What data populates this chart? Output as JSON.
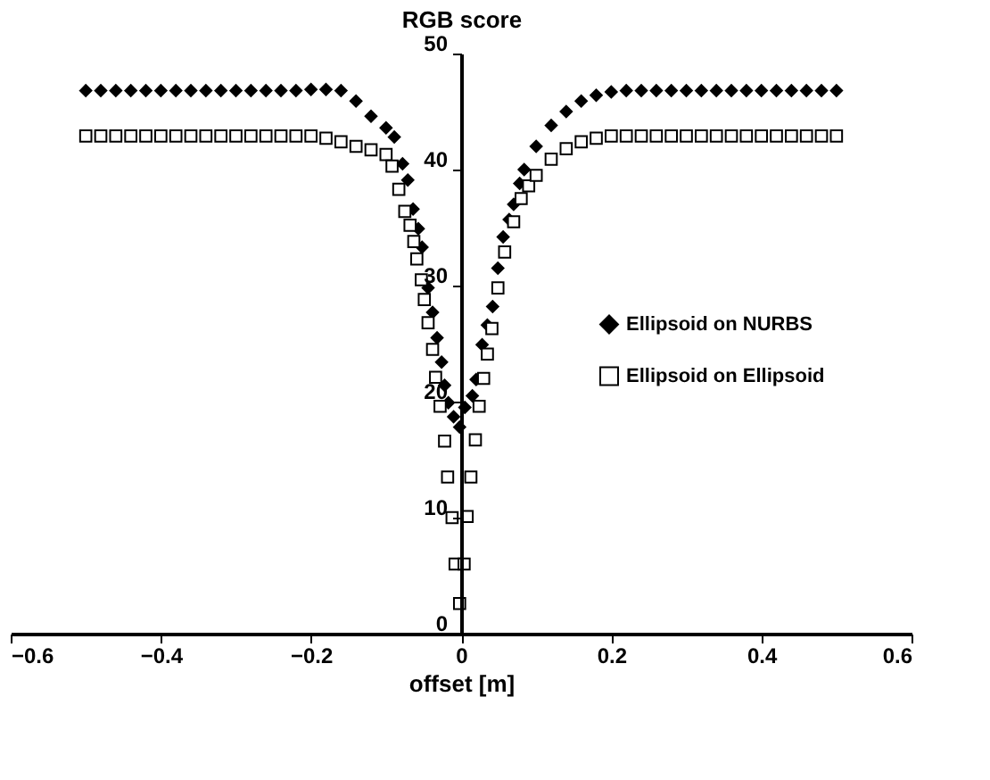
{
  "chart_data": {
    "type": "scatter",
    "xlabel": "offset [m]",
    "ylabel": "RGB score",
    "xlim": [
      -0.6,
      0.6
    ],
    "xticks": [
      -0.6,
      -0.4,
      -0.2,
      0,
      0.2,
      0.4,
      0.6
    ],
    "ylim": [
      0,
      50
    ],
    "yticks": [
      0,
      10,
      20,
      30,
      40,
      50
    ],
    "grid": false,
    "legend": "right",
    "series": [
      {
        "name": "Ellipsoid on NURBS",
        "color": "#000000",
        "marker": "diamond",
        "x": [
          -0.5,
          -0.48,
          -0.46,
          -0.44,
          -0.42,
          -0.4,
          -0.38,
          -0.36,
          -0.34,
          -0.32,
          -0.3,
          -0.28,
          -0.26,
          -0.24,
          -0.22,
          -0.2,
          -0.18,
          -0.16,
          -0.14,
          -0.12,
          -0.1,
          -0.089,
          -0.078,
          -0.071,
          -0.064,
          -0.057,
          -0.052,
          -0.044,
          -0.038,
          -0.032,
          -0.026,
          -0.022,
          -0.017,
          -0.01,
          -0.002,
          0.005,
          0.015,
          0.02,
          0.028,
          0.035,
          0.042,
          0.049,
          0.056,
          0.064,
          0.07,
          0.078,
          0.084,
          0.1,
          0.12,
          0.14,
          0.16,
          0.18,
          0.2,
          0.22,
          0.24,
          0.26,
          0.28,
          0.3,
          0.32,
          0.34,
          0.36,
          0.38,
          0.4,
          0.42,
          0.44,
          0.46,
          0.48,
          0.5
        ],
        "values": [
          46.8,
          46.8,
          46.8,
          46.8,
          46.8,
          46.8,
          46.8,
          46.8,
          46.8,
          46.8,
          46.8,
          46.8,
          46.8,
          46.8,
          46.8,
          46.9,
          46.9,
          46.8,
          45.9,
          44.6,
          43.6,
          42.8,
          40.5,
          39.1,
          36.6,
          34.9,
          33.3,
          29.8,
          27.7,
          25.5,
          23.4,
          21.4,
          19.9,
          18.7,
          17.8,
          19.5,
          20.5,
          21.9,
          24.9,
          26.6,
          28.2,
          31.5,
          34.2,
          35.7,
          37.0,
          38.8,
          40.0,
          42.0,
          43.8,
          45.0,
          45.9,
          46.4,
          46.7,
          46.8,
          46.8,
          46.8,
          46.8,
          46.8,
          46.8,
          46.8,
          46.8,
          46.8,
          46.8,
          46.8,
          46.8,
          46.8,
          46.8,
          46.8
        ]
      },
      {
        "name": "Ellipsoid on Ellipsoid",
        "color": "#000000",
        "marker": "square",
        "x": [
          -0.5,
          -0.48,
          -0.46,
          -0.44,
          -0.42,
          -0.4,
          -0.38,
          -0.36,
          -0.34,
          -0.32,
          -0.3,
          -0.28,
          -0.26,
          -0.24,
          -0.22,
          -0.2,
          -0.18,
          -0.16,
          -0.14,
          -0.12,
          -0.1,
          -0.092,
          -0.083,
          -0.075,
          -0.068,
          -0.063,
          -0.059,
          -0.053,
          -0.049,
          -0.044,
          -0.038,
          -0.034,
          -0.028,
          -0.022,
          -0.018,
          -0.012,
          -0.008,
          -0.002,
          0.004,
          0.008,
          0.013,
          0.019,
          0.024,
          0.03,
          0.035,
          0.041,
          0.049,
          0.058,
          0.07,
          0.08,
          0.09,
          0.1,
          0.12,
          0.14,
          0.16,
          0.18,
          0.2,
          0.22,
          0.24,
          0.26,
          0.28,
          0.3,
          0.32,
          0.34,
          0.36,
          0.38,
          0.4,
          0.42,
          0.44,
          0.46,
          0.48,
          0.5
        ],
        "values": [
          42.9,
          42.9,
          42.9,
          42.9,
          42.9,
          42.9,
          42.9,
          42.9,
          42.9,
          42.9,
          42.9,
          42.9,
          42.9,
          42.9,
          42.9,
          42.9,
          42.7,
          42.4,
          42.0,
          41.7,
          41.3,
          40.3,
          38.3,
          36.4,
          35.2,
          33.8,
          32.3,
          30.5,
          28.8,
          26.8,
          24.5,
          22.1,
          19.6,
          16.6,
          13.5,
          10.0,
          6.0,
          2.6,
          6.0,
          10.1,
          13.5,
          16.7,
          19.6,
          22.0,
          24.1,
          26.3,
          29.8,
          32.9,
          35.5,
          37.5,
          38.6,
          39.5,
          40.9,
          41.8,
          42.4,
          42.7,
          42.9,
          42.9,
          42.9,
          42.9,
          42.9,
          42.9,
          42.9,
          42.9,
          42.9,
          42.9,
          42.9,
          42.9,
          42.9,
          42.9,
          42.9,
          42.9
        ]
      }
    ]
  }
}
